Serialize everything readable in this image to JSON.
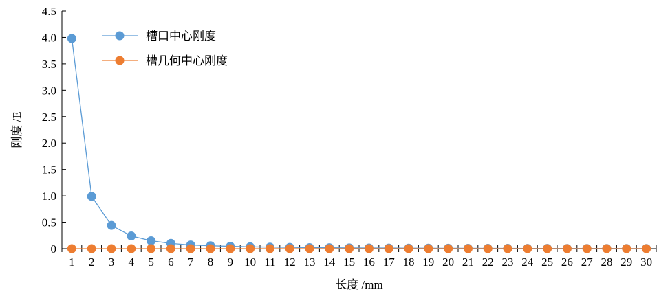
{
  "chart_data": {
    "type": "line",
    "xlabel": "长度 /mm",
    "ylabel": "刚度 /E",
    "ylim": [
      0,
      4.5
    ],
    "yticks": [
      "0",
      "0.5",
      "1.0",
      "1.5",
      "2.0",
      "2.5",
      "3.0",
      "3.5",
      "4.0",
      "4.5"
    ],
    "categories": [
      "1",
      "2",
      "3",
      "4",
      "5",
      "6",
      "7",
      "8",
      "9",
      "10",
      "11",
      "12",
      "13",
      "14",
      "15",
      "16",
      "17",
      "18",
      "19",
      "20",
      "21",
      "22",
      "23",
      "24",
      "25",
      "26",
      "27",
      "28",
      "29",
      "30"
    ],
    "grid": false,
    "legend_position": "top-left",
    "series": [
      {
        "name": "槽口中心刚度",
        "color": "#5b9bd5",
        "values": [
          3.98,
          0.99,
          0.44,
          0.24,
          0.15,
          0.1,
          0.07,
          0.055,
          0.045,
          0.035,
          0.03,
          0.025,
          0.02,
          0.018,
          0.015,
          0.013,
          0.012,
          0.01,
          0.009,
          0.008,
          0.007,
          0.006,
          0.006,
          0.005,
          0.005,
          0.004,
          0.004,
          0.004,
          0.003,
          0.003
        ]
      },
      {
        "name": "槽几何中心刚度",
        "color": "#ed7d31",
        "values": [
          0,
          0,
          0,
          0,
          0,
          0,
          0,
          0,
          0,
          0,
          0,
          0,
          0,
          0,
          0,
          0,
          0,
          0,
          0,
          0,
          0,
          0,
          0,
          0,
          0,
          0,
          0,
          0,
          0,
          0
        ]
      }
    ]
  }
}
